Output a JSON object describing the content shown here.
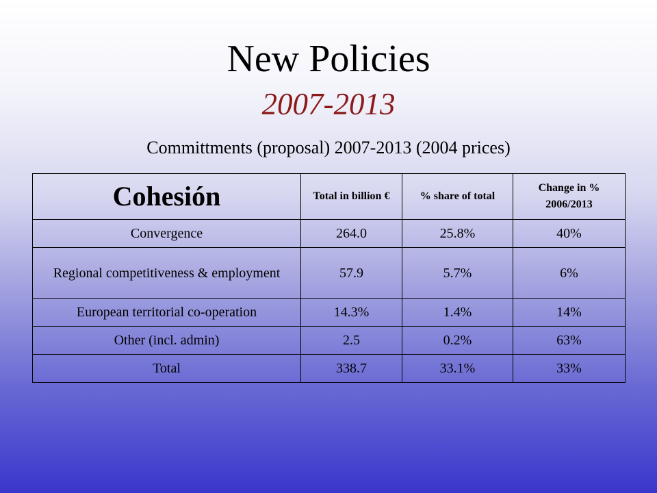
{
  "slide": {
    "title": "New Policies",
    "subtitle": "2007-2013",
    "caption": "Committments (proposal) 2007-2013 (2004 prices)"
  },
  "table": {
    "headers": [
      "Cohesión",
      "Total in billion €",
      "% share of total",
      "Change in % 2006/2013"
    ],
    "rows": [
      [
        "Convergence",
        "264.0",
        "25.8%",
        "40%"
      ],
      [
        "Regional competitiveness & employment",
        "57.9",
        "5.7%",
        "6%"
      ],
      [
        "European territorial co-operation",
        "14.3%",
        "1.4%",
        "14%"
      ],
      [
        "Other (incl. admin)",
        "2.5",
        "0.2%",
        "63%"
      ],
      [
        "Total",
        "338.7",
        "33.1%",
        "33%"
      ]
    ]
  },
  "colors": {
    "subtitle": "#8b1a1a",
    "background_top": "#ffffff",
    "background_bottom": "#3a36cc"
  }
}
